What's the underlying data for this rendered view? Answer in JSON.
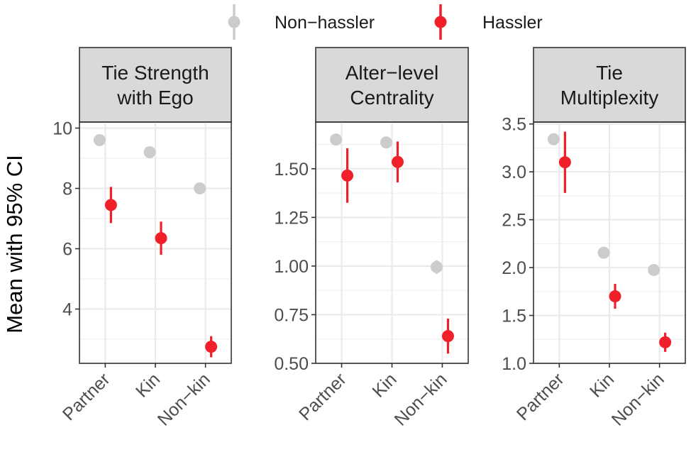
{
  "chart_data": {
    "type": "scatter",
    "ylabel": "Mean with 95% CI",
    "categories": [
      "Partner",
      "Kin",
      "Non−kin"
    ],
    "legend": {
      "position": "top",
      "entries": [
        {
          "name": "Non−hassler",
          "color": "#cccccc"
        },
        {
          "name": "Hassler",
          "color": "#f0202a"
        }
      ]
    },
    "grid": true,
    "panels": [
      {
        "title_lines": [
          "Tie Strength",
          "with Ego"
        ],
        "ylim": [
          2.2,
          10.2
        ],
        "yticks": [
          4,
          6,
          8,
          10
        ],
        "series": [
          {
            "name": "Non−hassler",
            "points": [
              {
                "x": "Partner",
                "y": 9.6,
                "lo": 9.5,
                "hi": 9.7
              },
              {
                "x": "Kin",
                "y": 9.2,
                "lo": 9.1,
                "hi": 9.3
              },
              {
                "x": "Non−kin",
                "y": 8.0,
                "lo": 7.9,
                "hi": 8.1
              }
            ]
          },
          {
            "name": "Hassler",
            "points": [
              {
                "x": "Partner",
                "y": 7.45,
                "lo": 6.85,
                "hi": 8.05
              },
              {
                "x": "Kin",
                "y": 6.35,
                "lo": 5.8,
                "hi": 6.9
              },
              {
                "x": "Non−kin",
                "y": 2.75,
                "lo": 2.4,
                "hi": 3.1
              }
            ]
          }
        ]
      },
      {
        "title_lines": [
          "Alter−level",
          "Centrality"
        ],
        "ylim": [
          0.5,
          1.74
        ],
        "yticks": [
          0.5,
          0.75,
          1.0,
          1.25,
          1.5
        ],
        "ytick_labels": [
          "0.50",
          "0.75",
          "1.00",
          "1.25",
          "1.50"
        ],
        "series": [
          {
            "name": "Non−hassler",
            "points": [
              {
                "x": "Partner",
                "y": 1.65,
                "lo": 1.62,
                "hi": 1.68
              },
              {
                "x": "Kin",
                "y": 1.635,
                "lo": 1.615,
                "hi": 1.655
              },
              {
                "x": "Non−kin",
                "y": 0.995,
                "lo": 0.96,
                "hi": 1.03
              }
            ]
          },
          {
            "name": "Hassler",
            "points": [
              {
                "x": "Partner",
                "y": 1.465,
                "lo": 1.325,
                "hi": 1.605
              },
              {
                "x": "Kin",
                "y": 1.535,
                "lo": 1.43,
                "hi": 1.64
              },
              {
                "x": "Non−kin",
                "y": 0.64,
                "lo": 0.55,
                "hi": 0.73
              }
            ]
          }
        ]
      },
      {
        "title_lines": [
          "Tie",
          "Multiplexity"
        ],
        "ylim": [
          1.0,
          3.52
        ],
        "yticks": [
          1.0,
          1.5,
          2.0,
          2.5,
          3.0,
          3.5
        ],
        "ytick_labels": [
          "1.0",
          "1.5",
          "2.0",
          "2.5",
          "3.0",
          "3.5"
        ],
        "series": [
          {
            "name": "Non−hassler",
            "points": [
              {
                "x": "Partner",
                "y": 3.34,
                "lo": 3.3,
                "hi": 3.38
              },
              {
                "x": "Kin",
                "y": 2.155,
                "lo": 2.13,
                "hi": 2.18
              },
              {
                "x": "Non−kin",
                "y": 1.975,
                "lo": 1.95,
                "hi": 2.0
              }
            ]
          },
          {
            "name": "Hassler",
            "points": [
              {
                "x": "Partner",
                "y": 3.1,
                "lo": 2.78,
                "hi": 3.42
              },
              {
                "x": "Kin",
                "y": 1.7,
                "lo": 1.57,
                "hi": 1.83
              },
              {
                "x": "Non−kin",
                "y": 1.22,
                "lo": 1.12,
                "hi": 1.32
              }
            ]
          }
        ]
      }
    ]
  }
}
